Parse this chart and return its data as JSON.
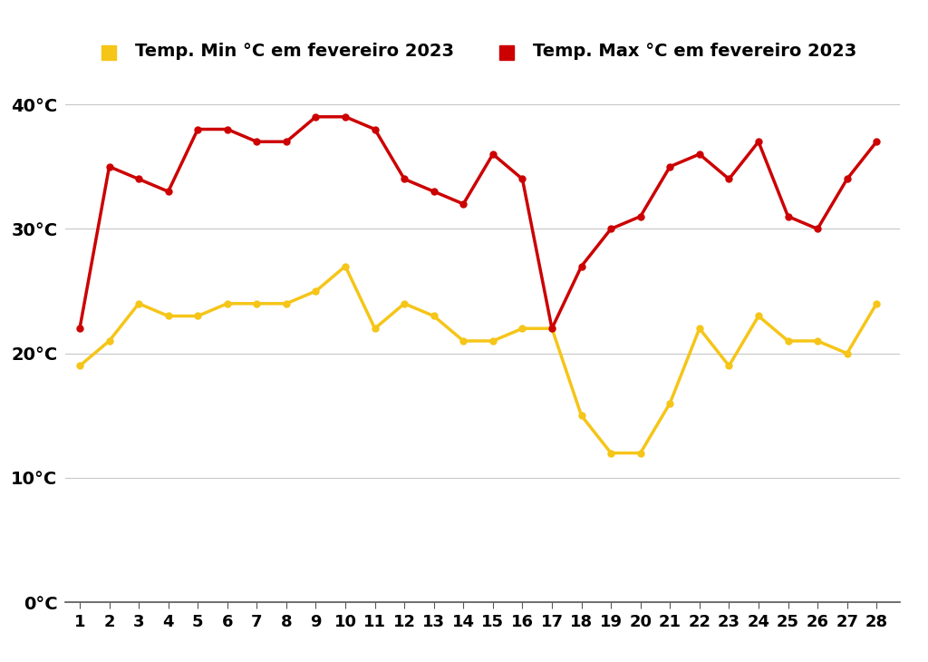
{
  "days": [
    1,
    2,
    3,
    4,
    5,
    6,
    7,
    8,
    9,
    10,
    11,
    12,
    13,
    14,
    15,
    16,
    17,
    18,
    19,
    20,
    21,
    22,
    23,
    24,
    25,
    26,
    27,
    28
  ],
  "temp_min": [
    19,
    21,
    24,
    23,
    23,
    24,
    24,
    24,
    25,
    27,
    22,
    24,
    23,
    21,
    21,
    22,
    22,
    15,
    12,
    12,
    16,
    22,
    19,
    23,
    21,
    21,
    20,
    24
  ],
  "temp_max": [
    22,
    35,
    34,
    33,
    38,
    38,
    37,
    37,
    39,
    39,
    38,
    34,
    33,
    32,
    36,
    34,
    22,
    27,
    30,
    31,
    35,
    36,
    34,
    37,
    31,
    30,
    34,
    37
  ],
  "min_color": "#f5c518",
  "max_color": "#cc0000",
  "min_label": "Temp. Min °C em fevereiro 2023",
  "max_label": "Temp. Max °C em fevereiro 2023",
  "yticks": [
    0,
    10,
    20,
    30,
    40
  ],
  "ytick_labels": [
    "0°C",
    "10°C",
    "20°C",
    "30°C",
    "40°C"
  ],
  "ylim": [
    0,
    42
  ],
  "xlim": [
    0.5,
    28.8
  ],
  "background_color": "#ffffff",
  "line_width": 2.5,
  "marker_size": 5,
  "legend_fontsize": 14,
  "tick_fontsize": 14,
  "xtick_fontsize": 13
}
